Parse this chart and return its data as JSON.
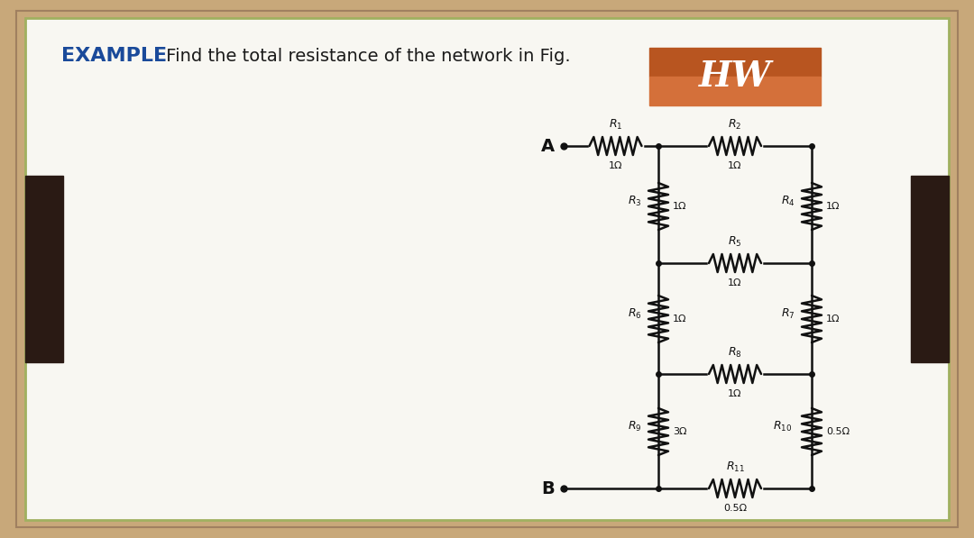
{
  "bg_outer": "#c8a87a",
  "bg_inner": "#f8f7f2",
  "border_color_outer": "#a08060",
  "border_color_inner": "#a0b060",
  "title_example_color": "#1a4a9a",
  "title_text_color": "#1a1a1a",
  "title_example": "EXAMPLE",
  "title_rest": " Find the total resistance of the network in Fig.",
  "hw_box_top": "#b85520",
  "hw_box_bot": "#d4703a",
  "hw_text": "HW",
  "hw_text_color": "#ffffff",
  "sidebar_color": "#2a1a14",
  "node_A_label": "A",
  "node_B_label": "B",
  "resistor_color": "#111111",
  "wire_color": "#111111",
  "label_color": "#111111",
  "dot_color": "#111111"
}
